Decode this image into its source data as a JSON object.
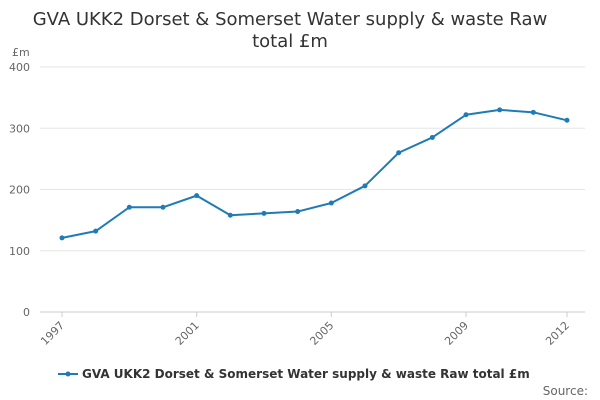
{
  "chart_data": {
    "type": "line",
    "title_line1": "GVA UKK2 Dorset & Somerset Water supply & waste Raw",
    "title_line2": "total £m",
    "unit_label": "£m",
    "xlabel": "",
    "ylabel": "",
    "ylim": [
      0,
      400
    ],
    "yticks": [
      0,
      100,
      200,
      300,
      400
    ],
    "xticks": [
      1997,
      2001,
      2005,
      2009,
      2012
    ],
    "grid": true,
    "legend_position": "bottom",
    "series": [
      {
        "name": "GVA UKK2 Dorset & Somerset Water supply & waste Raw total £m",
        "color": "#1f7bb6",
        "x": [
          1997,
          1998,
          1999,
          2000,
          2001,
          2002,
          2003,
          2004,
          2005,
          2006,
          2007,
          2008,
          2009,
          2010,
          2011,
          2012
        ],
        "values": [
          121,
          132,
          171,
          171,
          190,
          158,
          161,
          164,
          178,
          206,
          260,
          285,
          322,
          330,
          326,
          313
        ]
      }
    ]
  },
  "footer": {
    "source_label": "Source:"
  }
}
